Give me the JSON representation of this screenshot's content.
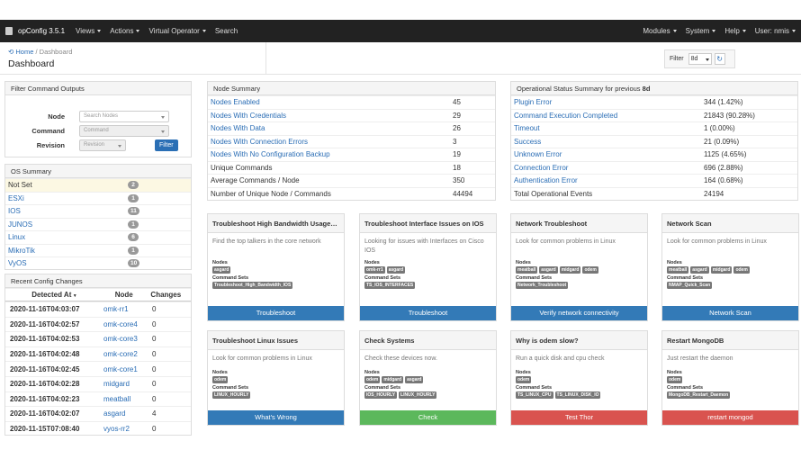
{
  "navbar": {
    "brand": "opConfig 3.5.1",
    "menus_left": [
      "Views",
      "Actions",
      "Virtual Operator",
      "Search"
    ],
    "menus_right": [
      "Modules",
      "System",
      "Help",
      "User: nmis"
    ]
  },
  "header": {
    "breadcrumb_home": "Home",
    "breadcrumb_sep": "/",
    "breadcrumb_current": "Dashboard",
    "title": "Dashboard",
    "filter_label": "Filter",
    "filter_value": "8d"
  },
  "filter_panel": {
    "title": "Filter Command Outputs",
    "node_label": "Node",
    "node_placeholder": "Search Nodes",
    "command_label": "Command",
    "command_placeholder": "Command",
    "revision_label": "Revision",
    "revision_placeholder": "Revision",
    "button": "Filter"
  },
  "os_summary": {
    "title": "OS Summary",
    "rows": [
      [
        "Not Set",
        2
      ],
      [
        "ESXi",
        1
      ],
      [
        "IOS",
        11
      ],
      [
        "JUNOS",
        1
      ],
      [
        "Linux",
        6
      ],
      [
        "MikroTik",
        1
      ],
      [
        "VyOS",
        10
      ]
    ]
  },
  "recent_changes": {
    "title": "Recent Config Changes",
    "columns": [
      "Detected At",
      "Node",
      "Changes"
    ],
    "rows": [
      [
        "2020-11-16T04:03:07",
        "omk-rr1",
        0
      ],
      [
        "2020-11-16T04:02:57",
        "omk-core4",
        0
      ],
      [
        "2020-11-16T04:02:53",
        "omk-core3",
        0
      ],
      [
        "2020-11-16T04:02:48",
        "omk-core2",
        0
      ],
      [
        "2020-11-16T04:02:45",
        "omk-core1",
        0
      ],
      [
        "2020-11-16T04:02:28",
        "midgard",
        0
      ],
      [
        "2020-11-16T04:02:23",
        "meatball",
        0
      ],
      [
        "2020-11-16T04:02:07",
        "asgard",
        4
      ],
      [
        "2020-11-15T07:08:40",
        "vyos-rr2",
        0
      ]
    ]
  },
  "node_summary": {
    "title": "Node Summary",
    "rows": [
      [
        "Nodes Enabled",
        45
      ],
      [
        "Nodes With Credentials",
        29
      ],
      [
        "Nodes With Data",
        26
      ],
      [
        "Nodes With Connection Errors",
        3
      ],
      [
        "Nodes With No Configuration Backup",
        19
      ],
      [
        "Unique Commands",
        18
      ],
      [
        "Average Commands / Node",
        350
      ],
      [
        "Number of Unique Node / Commands",
        44494
      ]
    ],
    "link_rows": 5
  },
  "op_status": {
    "title": "Operational Status Summary for previous",
    "period": "8d",
    "rows": [
      [
        "Plugin Error",
        "344 (1.42%)"
      ],
      [
        "Command Execution Completed",
        "21843 (90.28%)"
      ],
      [
        "Timeout",
        "1 (0.00%)"
      ],
      [
        "Success",
        "21 (0.09%)"
      ],
      [
        "Unknown Error",
        "1125 (4.65%)"
      ],
      [
        "Connection Error",
        "696 (2.88%)"
      ],
      [
        "Authentication Error",
        "164 (0.68%)"
      ],
      [
        "Total Operational Events",
        24194
      ]
    ],
    "link_rows": 7
  },
  "card_labels": {
    "nodes": "Nodes",
    "command_sets": "Command Sets"
  },
  "cards": [
    {
      "title": "Troubleshoot High Bandwidth Usage…",
      "description": "Find the top talkers in the core network",
      "nodes": [
        "asgard"
      ],
      "command_sets": [
        "Troubleshoot_High_Bandwidth_IOS"
      ],
      "button": "Troubleshoot",
      "button_color": "#337ab7"
    },
    {
      "title": "Troubleshoot Interface Issues on IOS",
      "description": "Looking for issues with Interfaces on Cisco IOS",
      "nodes": [
        "omk-rr1",
        "asgard"
      ],
      "command_sets": [
        "TS_IOS_INTERFACES"
      ],
      "button": "Troubleshoot",
      "button_color": "#337ab7"
    },
    {
      "title": "Network Troubleshoot",
      "description": "Look for common problems in Linux",
      "nodes": [
        "meatball",
        "asgard",
        "midgard",
        "odem"
      ],
      "command_sets": [
        "Network_Troubleshoot"
      ],
      "button": "Verify network connectivity",
      "button_color": "#337ab7"
    },
    {
      "title": "Network Scan",
      "description": "Look for common problems in Linux",
      "nodes": [
        "meatball",
        "asgard",
        "midgard",
        "odem"
      ],
      "command_sets": [
        "NMAP_Quick_Scan"
      ],
      "button": "Network Scan",
      "button_color": "#337ab7"
    },
    {
      "title": "Troubleshoot Linux Issues",
      "description": "Look for common problems in Linux",
      "nodes": [
        "odem"
      ],
      "command_sets": [
        "LINUX_HOURLY"
      ],
      "button": "What's Wrong",
      "button_color": "#337ab7"
    },
    {
      "title": "Check Systems",
      "description": "Check these devices now.",
      "nodes": [
        "odem",
        "midgard",
        "asgard"
      ],
      "command_sets": [
        "IOS_HOURLY",
        "LINUX_HOURLY"
      ],
      "button": "Check",
      "button_color": "#5cb85c"
    },
    {
      "title": "Why is odem slow?",
      "description": "Run a quick disk and cpu check",
      "nodes": [
        "odem"
      ],
      "command_sets": [
        "TS_LINUX_CPU",
        "TS_LINUX_DISK_IO"
      ],
      "button": "Test Thor",
      "button_color": "#d9534f"
    },
    {
      "title": "Restart MongoDB",
      "description": "Just restart the daemon",
      "nodes": [
        "odem"
      ],
      "command_sets": [
        "MongoDB_Restart_Daemon"
      ],
      "button": "restart mongod",
      "button_color": "#d9534f"
    }
  ]
}
